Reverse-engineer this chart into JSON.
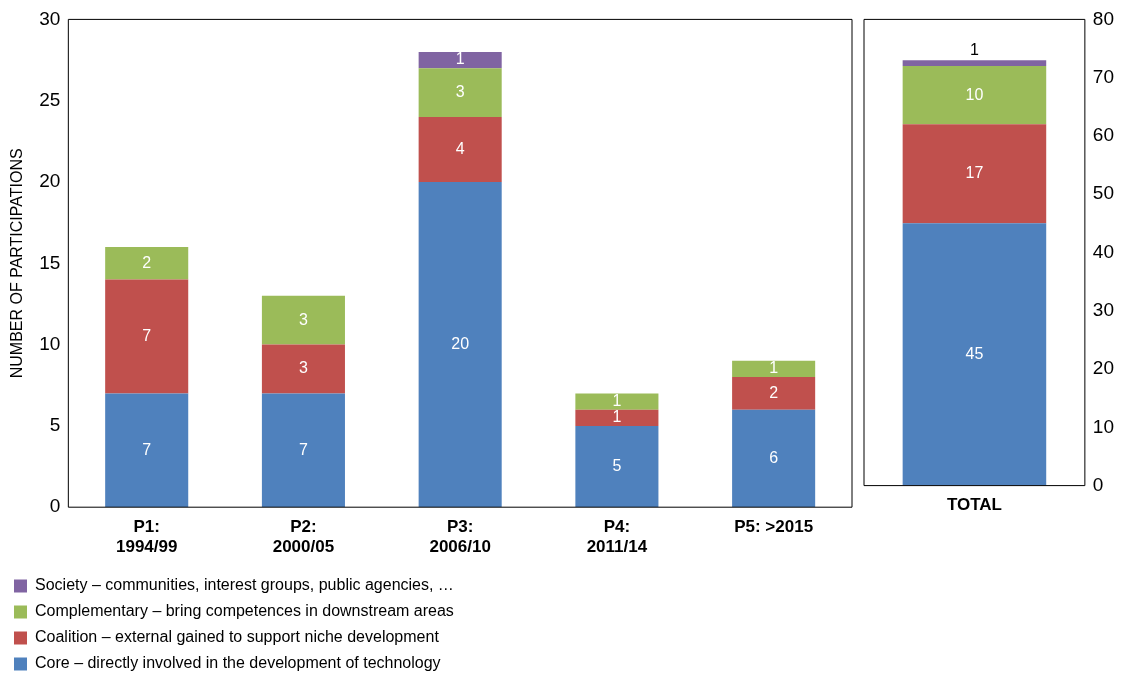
{
  "chart_data": [
    {
      "type": "bar",
      "stacked": true,
      "ylabel": "NUMBER OF PARTICIPATIONS",
      "categories": [
        "P1: 1994/99",
        "P2: 2000/05",
        "P3: 2006/10",
        "P4: 2011/14",
        "P5: >2015"
      ],
      "ylim": [
        0,
        30
      ],
      "yticks": [
        0,
        5,
        10,
        15,
        20,
        25,
        30
      ],
      "data_labels": true,
      "legend": "bottom",
      "series": [
        {
          "name": "Core – directly involved in the development of technology",
          "color": "#4f81bd",
          "values": [
            7,
            7,
            20,
            5,
            6
          ]
        },
        {
          "name": "Coalition – external gained to support niche development",
          "color": "#c0504d",
          "values": [
            7,
            3,
            4,
            1,
            2
          ]
        },
        {
          "name": "Complementary – bring competences in downstream areas",
          "color": "#9bbb59",
          "values": [
            2,
            3,
            3,
            1,
            1
          ]
        },
        {
          "name": "Society – communities, interest groups, public agencies, …",
          "color": "#8064a2",
          "values": [
            null,
            null,
            1,
            null,
            null
          ]
        }
      ]
    },
    {
      "type": "bar",
      "stacked": true,
      "categories": [
        "TOTAL"
      ],
      "y2lim": [
        0,
        80
      ],
      "y2ticks": [
        0,
        10,
        20,
        30,
        40,
        50,
        60,
        70,
        80
      ],
      "data_labels": true,
      "series": [
        {
          "color": "#4f81bd",
          "values": [
            45
          ],
          "axis": "y2"
        },
        {
          "color": "#c0504d",
          "values": [
            17
          ],
          "axis": "y2"
        },
        {
          "color": "#9bbb59",
          "values": [
            10
          ],
          "axis": "y2"
        },
        {
          "color": "#8064a2",
          "values": [
            1
          ],
          "axis": "y2"
        }
      ]
    }
  ]
}
